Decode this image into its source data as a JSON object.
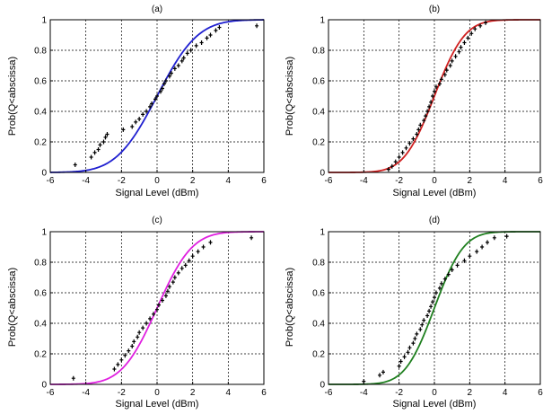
{
  "chart_data": [
    {
      "type": "scatter",
      "title": "(a)",
      "xlabel": "Signal Level (dBm)",
      "ylabel": "Prob(Q<abscissa)",
      "xlim": [
        -6,
        6
      ],
      "ylim": [
        0,
        1
      ],
      "xticks": [
        "-6",
        "-4",
        "-2",
        "0",
        "2",
        "4",
        "6"
      ],
      "yticks": [
        "0",
        "0.2",
        "0.4",
        "0.6",
        "0.8",
        "1"
      ],
      "grid": true,
      "line_color": "#2020d0",
      "fit_curve": {
        "mean": 0.0,
        "std": 1.8
      },
      "points": [
        [
          -4.6,
          0.05
        ],
        [
          -3.7,
          0.1
        ],
        [
          -3.5,
          0.13
        ],
        [
          -3.3,
          0.15
        ],
        [
          -3.2,
          0.18
        ],
        [
          -3.0,
          0.2
        ],
        [
          -2.9,
          0.23
        ],
        [
          -2.8,
          0.25
        ],
        [
          -1.9,
          0.28
        ],
        [
          -1.4,
          0.3
        ],
        [
          -1.2,
          0.33
        ],
        [
          -1.0,
          0.35
        ],
        [
          -0.8,
          0.38
        ],
        [
          -0.6,
          0.4
        ],
        [
          -0.4,
          0.43
        ],
        [
          -0.3,
          0.45
        ],
        [
          -0.1,
          0.48
        ],
        [
          0.0,
          0.5
        ],
        [
          0.2,
          0.53
        ],
        [
          0.3,
          0.55
        ],
        [
          0.4,
          0.58
        ],
        [
          0.5,
          0.6
        ],
        [
          0.7,
          0.63
        ],
        [
          0.8,
          0.65
        ],
        [
          1.0,
          0.68
        ],
        [
          1.2,
          0.7
        ],
        [
          1.4,
          0.73
        ],
        [
          1.5,
          0.75
        ],
        [
          1.7,
          0.78
        ],
        [
          1.9,
          0.8
        ],
        [
          2.2,
          0.83
        ],
        [
          2.5,
          0.85
        ],
        [
          2.8,
          0.88
        ],
        [
          3.0,
          0.9
        ],
        [
          3.3,
          0.93
        ],
        [
          3.5,
          0.95
        ],
        [
          5.6,
          0.96
        ]
      ]
    },
    {
      "type": "scatter",
      "title": "(b)",
      "xlabel": "Signal Level (dBm)",
      "ylabel": "Prob(Q<abscissa)",
      "xlim": [
        -6,
        6
      ],
      "ylim": [
        0,
        1
      ],
      "xticks": [
        "-6",
        "-4",
        "-2",
        "0",
        "2",
        "4",
        "6"
      ],
      "yticks": [
        "0",
        "0.2",
        "0.4",
        "0.6",
        "0.8",
        "1"
      ],
      "grid": true,
      "line_color": "#d02020",
      "fit_curve": {
        "mean": 0.0,
        "std": 1.35
      },
      "points": [
        [
          -2.6,
          0.02
        ],
        [
          -2.4,
          0.04
        ],
        [
          -2.2,
          0.07
        ],
        [
          -2.0,
          0.1
        ],
        [
          -1.8,
          0.13
        ],
        [
          -1.6,
          0.16
        ],
        [
          -1.4,
          0.19
        ],
        [
          -1.2,
          0.22
        ],
        [
          -1.0,
          0.25
        ],
        [
          -0.9,
          0.28
        ],
        [
          -0.8,
          0.31
        ],
        [
          -0.6,
          0.34
        ],
        [
          -0.5,
          0.37
        ],
        [
          -0.4,
          0.4
        ],
        [
          -0.3,
          0.43
        ],
        [
          -0.2,
          0.46
        ],
        [
          -0.1,
          0.5
        ],
        [
          0.0,
          0.53
        ],
        [
          0.1,
          0.56
        ],
        [
          0.3,
          0.58
        ],
        [
          0.4,
          0.61
        ],
        [
          0.6,
          0.64
        ],
        [
          0.7,
          0.67
        ],
        [
          0.9,
          0.7
        ],
        [
          1.0,
          0.73
        ],
        [
          1.2,
          0.76
        ],
        [
          1.4,
          0.79
        ],
        [
          1.5,
          0.82
        ],
        [
          1.7,
          0.85
        ],
        [
          1.9,
          0.88
        ],
        [
          2.1,
          0.91
        ],
        [
          2.3,
          0.94
        ],
        [
          2.6,
          0.96
        ],
        [
          2.9,
          0.98
        ]
      ]
    },
    {
      "type": "scatter",
      "title": "(c)",
      "xlabel": "Signal Level (dBm)",
      "ylabel": "Prob(Q<abscissa)",
      "xlim": [
        -6,
        6
      ],
      "ylim": [
        0,
        1
      ],
      "xticks": [
        "-6",
        "-4",
        "-2",
        "0",
        "2",
        "4",
        "6"
      ],
      "yticks": [
        "0",
        "0.2",
        "0.4",
        "0.6",
        "0.8",
        "1"
      ],
      "grid": true,
      "line_color": "#e020e0",
      "fit_curve": {
        "mean": 0.0,
        "std": 1.55
      },
      "points": [
        [
          -4.7,
          0.04
        ],
        [
          -2.4,
          0.1
        ],
        [
          -2.2,
          0.13
        ],
        [
          -2.0,
          0.16
        ],
        [
          -1.8,
          0.19
        ],
        [
          -1.6,
          0.22
        ],
        [
          -1.4,
          0.25
        ],
        [
          -1.3,
          0.28
        ],
        [
          -1.1,
          0.31
        ],
        [
          -1.0,
          0.34
        ],
        [
          -0.8,
          0.37
        ],
        [
          -0.6,
          0.4
        ],
        [
          -0.4,
          0.43
        ],
        [
          -0.2,
          0.46
        ],
        [
          0.0,
          0.49
        ],
        [
          0.1,
          0.52
        ],
        [
          0.3,
          0.55
        ],
        [
          0.5,
          0.58
        ],
        [
          0.6,
          0.61
        ],
        [
          0.7,
          0.64
        ],
        [
          0.9,
          0.67
        ],
        [
          1.0,
          0.7
        ],
        [
          1.2,
          0.73
        ],
        [
          1.4,
          0.76
        ],
        [
          1.6,
          0.78
        ],
        [
          1.8,
          0.81
        ],
        [
          2.0,
          0.84
        ],
        [
          2.3,
          0.87
        ],
        [
          2.6,
          0.9
        ],
        [
          3.0,
          0.93
        ],
        [
          5.3,
          0.96
        ]
      ]
    },
    {
      "type": "scatter",
      "title": "(d)",
      "xlabel": "Signal Level (dBm)",
      "ylabel": "Prob(Q<abscissa)",
      "xlim": [
        -6,
        6
      ],
      "ylim": [
        0,
        1
      ],
      "xticks": [
        "-6",
        "-4",
        "-2",
        "0",
        "2",
        "4",
        "6"
      ],
      "yticks": [
        "0",
        "0.2",
        "0.4",
        "0.6",
        "0.8",
        "1"
      ],
      "grid": true,
      "line_color": "#208020",
      "fit_curve": {
        "mean": 0.0,
        "std": 1.3
      },
      "points": [
        [
          -4.0,
          0.02
        ],
        [
          -3.1,
          0.06
        ],
        [
          -2.9,
          0.08
        ],
        [
          -2.0,
          0.12
        ],
        [
          -1.9,
          0.15
        ],
        [
          -1.7,
          0.18
        ],
        [
          -1.5,
          0.21
        ],
        [
          -1.4,
          0.24
        ],
        [
          -1.2,
          0.27
        ],
        [
          -1.1,
          0.3
        ],
        [
          -1.0,
          0.33
        ],
        [
          -0.8,
          0.36
        ],
        [
          -0.7,
          0.39
        ],
        [
          -0.6,
          0.42
        ],
        [
          -0.4,
          0.45
        ],
        [
          -0.3,
          0.48
        ],
        [
          -0.2,
          0.51
        ],
        [
          -0.1,
          0.54
        ],
        [
          0.0,
          0.57
        ],
        [
          0.1,
          0.6
        ],
        [
          0.3,
          0.63
        ],
        [
          0.4,
          0.66
        ],
        [
          0.6,
          0.69
        ],
        [
          0.8,
          0.72
        ],
        [
          1.0,
          0.75
        ],
        [
          1.3,
          0.78
        ],
        [
          1.7,
          0.81
        ],
        [
          2.0,
          0.84
        ],
        [
          2.4,
          0.87
        ],
        [
          2.7,
          0.9
        ],
        [
          3.0,
          0.93
        ],
        [
          3.4,
          0.96
        ],
        [
          4.1,
          0.97
        ]
      ]
    }
  ]
}
